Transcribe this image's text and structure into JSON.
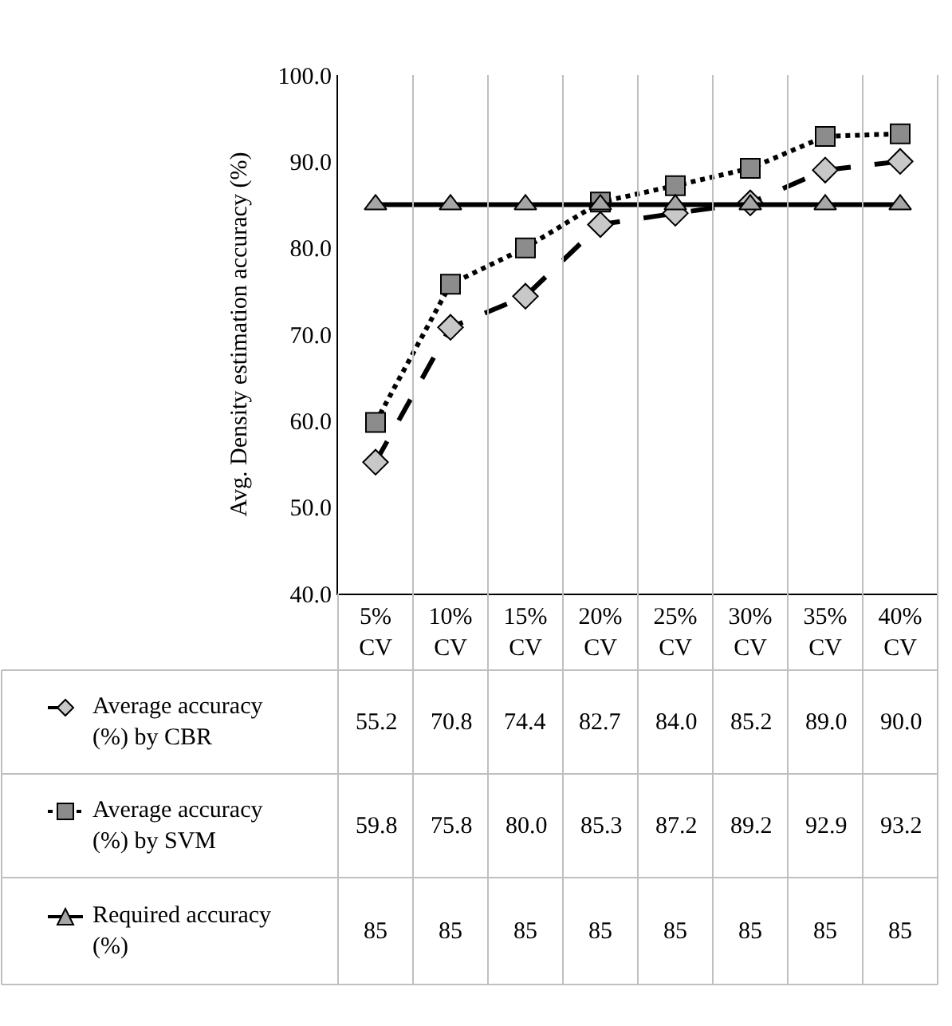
{
  "chart_data": {
    "type": "line",
    "ylabel": "Avg. Density estimation accuracy (%)",
    "categories": [
      "5% CV",
      "10% CV",
      "15% CV",
      "20% CV",
      "25% CV",
      "30% CV",
      "35% CV",
      "40% CV"
    ],
    "ylim": [
      40,
      100
    ],
    "yticks": [
      {
        "value": 40,
        "label": "40.0"
      },
      {
        "value": 50,
        "label": "50.0"
      },
      {
        "value": 60,
        "label": "60.0"
      },
      {
        "value": 70,
        "label": "70.0"
      },
      {
        "value": 80,
        "label": "80.0"
      },
      {
        "value": 90,
        "label": "90.0"
      },
      {
        "value": 100,
        "label": "100.0"
      }
    ],
    "grid": "x",
    "legend": "bottom",
    "series": [
      {
        "name": "Average accuracy (%) by CBR",
        "color": "#000000",
        "marker": "diamond",
        "line_style": "dashed",
        "values": [
          55.2,
          70.8,
          74.4,
          82.7,
          84.0,
          85.2,
          89.0,
          90.0
        ],
        "value_labels": [
          "55.2",
          "70.8",
          "74.4",
          "82.7",
          "84.0",
          "85.2",
          "89.0",
          "90.0"
        ]
      },
      {
        "name": "Average accuracy (%) by SVM",
        "color": "#000000",
        "marker": "square",
        "line_style": "dotted",
        "values": [
          59.8,
          75.8,
          80.0,
          85.3,
          87.2,
          89.2,
          92.9,
          93.2
        ],
        "value_labels": [
          "59.8",
          "75.8",
          "80.0",
          "85.3",
          "87.2",
          "89.2",
          "92.9",
          "93.2"
        ]
      },
      {
        "name": "Required accuracy (%)",
        "color": "#000000",
        "marker": "triangle",
        "line_style": "solid",
        "values": [
          85,
          85,
          85,
          85,
          85,
          85,
          85,
          85
        ],
        "value_labels": [
          "85",
          "85",
          "85",
          "85",
          "85",
          "85",
          "85",
          "85"
        ]
      }
    ]
  }
}
